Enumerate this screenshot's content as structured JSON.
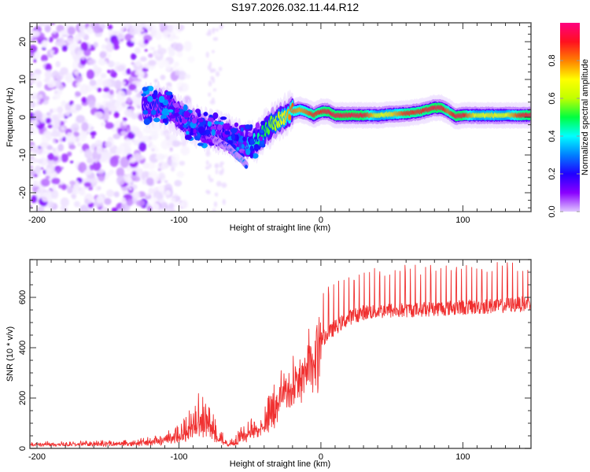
{
  "title": "S197.2026.032.11.44.R12",
  "chart_data": [
    {
      "type": "heatmap",
      "name": "spectrogram",
      "xlabel": "Height of straight line (km)",
      "ylabel": "Frequency (Hz)",
      "xlim": [
        -205,
        148
      ],
      "ylim": [
        -25,
        25
      ],
      "xticks": [
        -200,
        -100,
        0,
        100
      ],
      "xtick_labels": [
        "-200",
        "-100",
        "0",
        "100"
      ],
      "yticks": [
        -20,
        -10,
        0,
        10,
        20
      ],
      "ytick_labels": [
        "-20",
        "-10",
        "0",
        "10",
        "20"
      ],
      "colorbar": {
        "label": "Normalized spectral amplitude",
        "range": [
          0,
          1
        ],
        "ticks": [
          0.0,
          0.2,
          0.4,
          0.6,
          0.8
        ],
        "tick_labels": [
          "0.0",
          "0.2",
          "0.4",
          "0.6",
          "0.8"
        ],
        "colormap": [
          "#ffffff",
          "#e0c8ff",
          "#8a00ff",
          "#2000ff",
          "#0080ff",
          "#00ffff",
          "#00ff40",
          "#c0ff00",
          "#ffff00",
          "#ff8000",
          "#ff1020",
          "#ff0080"
        ]
      },
      "ridge": {
        "description": "Dominant frequency ridge vs height",
        "x": [
          -125,
          -115,
          -105,
          -95,
          -85,
          -75,
          -65,
          -55,
          -50,
          -45,
          -40,
          -35,
          -30,
          -25,
          -20,
          -15,
          -10,
          -5,
          0,
          5,
          10,
          20,
          30,
          40,
          50,
          60,
          70,
          80,
          85,
          90,
          95,
          100,
          110,
          120,
          130,
          140,
          148
        ],
        "y": [
          3,
          3.5,
          2,
          -1,
          -3,
          -4,
          -5,
          -7,
          -7,
          -6,
          -4,
          -2,
          -1,
          0.5,
          1.5,
          2,
          1.5,
          0.5,
          1.5,
          1.5,
          0.5,
          0.5,
          0.5,
          0.5,
          0.8,
          1,
          1.5,
          2.5,
          2.5,
          1.5,
          0.2,
          0.5,
          0.5,
          0.5,
          0.5,
          0.5,
          0.5
        ],
        "amplitude": [
          0.25,
          0.3,
          0.3,
          0.28,
          0.3,
          0.25,
          0.28,
          0.35,
          0.45,
          0.5,
          0.55,
          0.6,
          0.65,
          0.75,
          0.85,
          0.8,
          0.85,
          0.9,
          0.9,
          0.95,
          0.95,
          0.95,
          0.95,
          0.7,
          0.75,
          0.9,
          0.9,
          0.95,
          0.95,
          0.85,
          0.95,
          0.95,
          0.7,
          0.75,
          0.7,
          0.9,
          0.95
        ]
      },
      "branch": {
        "description": "Secondary lower branch",
        "x": [
          -75,
          -70,
          -65,
          -60,
          -55,
          -52
        ],
        "y": [
          -6,
          -7,
          -8,
          -10,
          -11.5,
          -13
        ],
        "amplitude": [
          0.2,
          0.25,
          0.3,
          0.35,
          0.4,
          0.3
        ]
      },
      "noise_region": {
        "description": "Scattered low-amplitude noise at low heights",
        "x_range": [
          -205,
          -110
        ],
        "y_range": [
          -25,
          25
        ],
        "amplitude_range": [
          0.02,
          0.2
        ]
      }
    },
    {
      "type": "line",
      "name": "snr",
      "xlabel": "Height of straight line (km)",
      "ylabel": "SNR (10 * v/v)",
      "xlim": [
        -205,
        148
      ],
      "ylim": [
        0,
        750
      ],
      "xticks": [
        -200,
        -100,
        0,
        100
      ],
      "xtick_labels": [
        "-200",
        "-100",
        "0",
        "100"
      ],
      "yticks": [
        0,
        200,
        400,
        600
      ],
      "ytick_labels": [
        "0",
        "200",
        "400",
        "600"
      ],
      "color": "#f03030",
      "envelope": {
        "x": [
          -205,
          -180,
          -150,
          -130,
          -120,
          -110,
          -100,
          -95,
          -90,
          -85,
          -80,
          -75,
          -70,
          -65,
          -60,
          -55,
          -50,
          -45,
          -40,
          -35,
          -30,
          -25,
          -20,
          -15,
          -10,
          -5,
          0,
          10,
          20,
          30,
          40,
          60,
          80,
          100,
          120,
          148
        ],
        "baseline": [
          15,
          15,
          15,
          18,
          20,
          25,
          35,
          50,
          70,
          80,
          75,
          50,
          25,
          15,
          15,
          40,
          50,
          60,
          80,
          120,
          180,
          230,
          280,
          320,
          360,
          400,
          430,
          480,
          520,
          540,
          545,
          550,
          555,
          560,
          565,
          575
        ],
        "peaks": [
          30,
          30,
          35,
          40,
          50,
          80,
          110,
          150,
          190,
          240,
          200,
          160,
          80,
          40,
          60,
          100,
          130,
          140,
          180,
          260,
          320,
          370,
          420,
          480,
          560,
          600,
          640,
          660,
          690,
          700,
          720,
          730,
          730,
          735,
          740,
          745
        ]
      }
    }
  ]
}
